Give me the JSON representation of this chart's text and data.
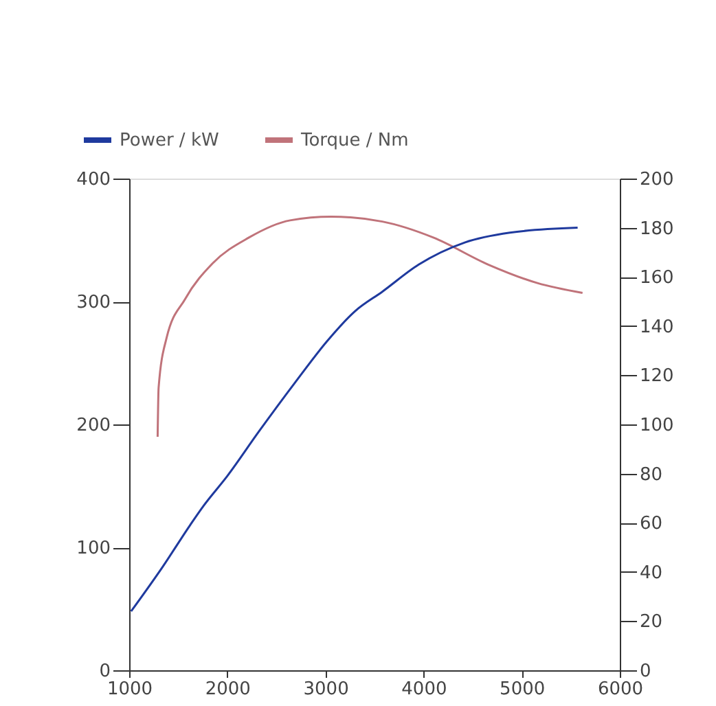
{
  "chart_data": {
    "type": "line",
    "xlim": [
      1000,
      6000
    ],
    "xticks": [
      1000,
      2000,
      3000,
      4000,
      5000,
      6000
    ],
    "ylim": [
      0,
      400
    ],
    "yticks": [
      0,
      100,
      200,
      300,
      400
    ],
    "y2lim": [
      0,
      200
    ],
    "y2ticks": [
      0,
      20,
      40,
      60,
      80,
      100,
      120,
      140,
      160,
      180,
      200
    ],
    "legend": "top left",
    "line_style": "solid",
    "series": [
      {
        "name": "Power / kW",
        "color": "#1f3a9e",
        "axis": "y2",
        "x": [
          1020,
          1340,
          1620,
          1760,
          2000,
          2320,
          2690,
          3020,
          3300,
          3580,
          3950,
          4420,
          4880,
          5570
        ],
        "values": [
          24,
          42,
          59,
          67,
          79,
          97,
          117,
          134,
          146,
          154,
          165,
          174,
          178,
          180
        ]
      },
      {
        "name": "Torque / Nm",
        "color": "#c0737a",
        "x": [
          1290,
          1300,
          1380,
          1570,
          1850,
          2220,
          2640,
          3060,
          3580,
          4100,
          4660,
          5160,
          5620
        ],
        "values": [
          190,
          230,
          270,
          302,
          331,
          352,
          366,
          369,
          365,
          352,
          330,
          315,
          307
        ]
      }
    ]
  }
}
